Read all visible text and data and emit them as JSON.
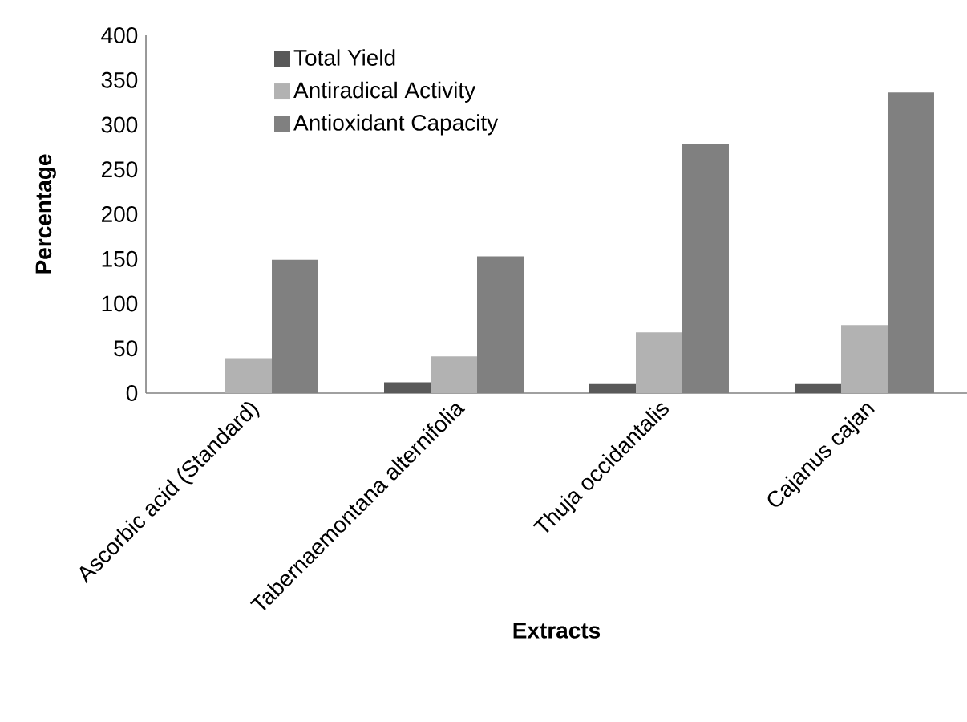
{
  "chart_data": {
    "type": "bar",
    "xlabel": "Extracts",
    "ylabel": "Percentage",
    "categories": [
      "Ascorbic acid (Standard)",
      "Tabernaemontana alternifolia",
      "Thuja occidantalis",
      "Cajanus cajan"
    ],
    "series": [
      {
        "name": "Total Yield",
        "color": "#595959",
        "values": [
          0,
          12,
          10,
          10
        ]
      },
      {
        "name": "Antiradical Activity",
        "color": "#b2b2b2",
        "values": [
          39,
          41,
          68,
          76
        ]
      },
      {
        "name": "Antioxidant Capacity",
        "color": "#808080",
        "values": [
          149,
          153,
          278,
          336
        ]
      }
    ],
    "ylim": [
      0,
      400
    ],
    "yticks": [
      0,
      50,
      100,
      150,
      200,
      250,
      300,
      350,
      400
    ],
    "legend": "top left"
  }
}
